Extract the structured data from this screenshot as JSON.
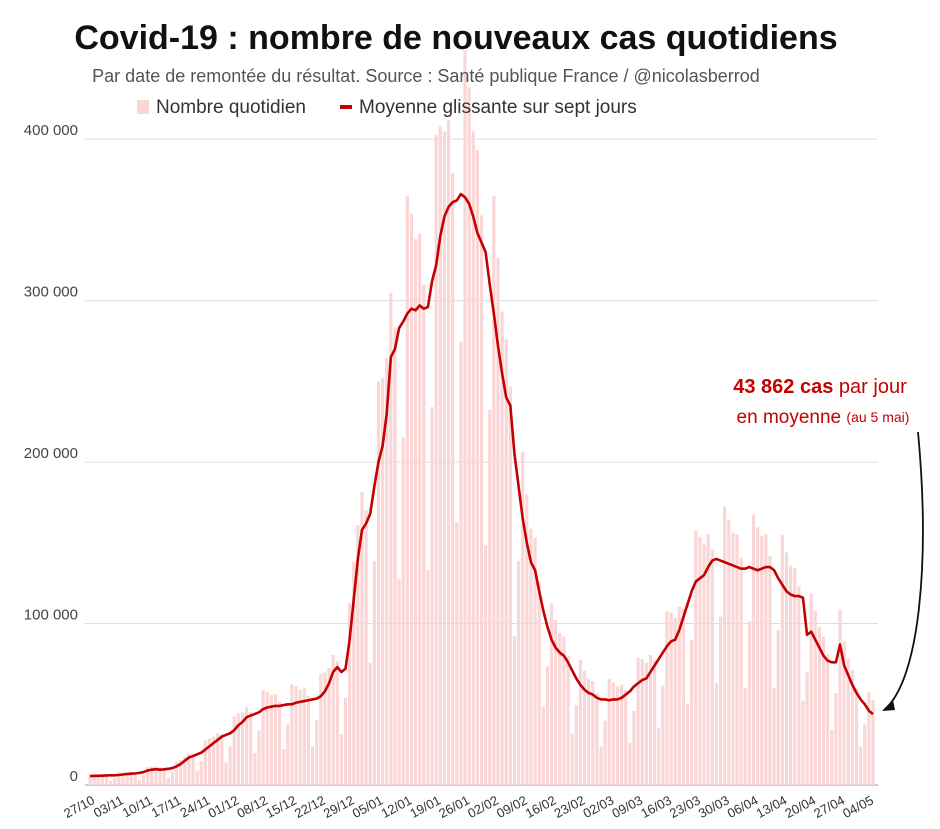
{
  "chart_data": {
    "type": "bar_line",
    "title": "Covid-19 : nombre de nouveaux cas quotidiens",
    "subtitle": "Par date de remontée du résultat. Source : Santé publique France / @nicolasberrod",
    "annotation": {
      "value": "43 862 cas",
      "text1": "par jour",
      "text2": "en moyenne",
      "note": "(au 5 mai)"
    },
    "categories": [
      "27/10",
      null,
      null,
      null,
      null,
      null,
      null,
      "03/11",
      null,
      null,
      null,
      null,
      null,
      null,
      "10/11",
      null,
      null,
      null,
      null,
      null,
      null,
      "17/11",
      null,
      null,
      null,
      null,
      null,
      null,
      "24/11",
      null,
      null,
      null,
      null,
      null,
      null,
      "01/12",
      null,
      null,
      null,
      null,
      null,
      null,
      "08/12",
      null,
      null,
      null,
      null,
      null,
      null,
      "15/12",
      null,
      null,
      null,
      null,
      null,
      null,
      "22/12",
      null,
      null,
      null,
      null,
      null,
      null,
      "29/12",
      null,
      null,
      null,
      null,
      null,
      null,
      "05/01",
      null,
      null,
      null,
      null,
      null,
      null,
      "12/01",
      null,
      null,
      null,
      null,
      null,
      null,
      "19/01",
      null,
      null,
      null,
      null,
      null,
      null,
      "26/01",
      null,
      null,
      null,
      null,
      null,
      null,
      "02/02",
      null,
      null,
      null,
      null,
      null,
      null,
      "09/02",
      null,
      null,
      null,
      null,
      null,
      null,
      "16/02",
      null,
      null,
      null,
      null,
      null,
      null,
      "23/02",
      null,
      null,
      null,
      null,
      null,
      null,
      "02/03",
      null,
      null,
      null,
      null,
      null,
      null,
      "09/03",
      null,
      null,
      null,
      null,
      null,
      null,
      "16/03",
      null,
      null,
      null,
      null,
      null,
      null,
      "23/03",
      null,
      null,
      null,
      null,
      null,
      null,
      "30/03",
      null,
      null,
      null,
      null,
      null,
      null,
      "06/04",
      null,
      null,
      null,
      null,
      null,
      null,
      "13/04",
      null,
      null,
      null,
      null,
      null,
      null,
      "20/04",
      null,
      null,
      null,
      null,
      null,
      null,
      "27/04",
      null,
      null,
      null,
      null,
      null,
      null,
      "04/05",
      null
    ],
    "series": [
      {
        "name": "Nombre quotidien",
        "type": "bar",
        "color": "#fbd6d6",
        "values": [
          6900,
          6700,
          6600,
          6700,
          6200,
          2700,
          4500,
          7800,
          7800,
          7800,
          8100,
          7600,
          3400,
          6000,
          11300,
          11400,
          11300,
          10900,
          10200,
          4500,
          7900,
          14400,
          15600,
          17300,
          19600,
          18900,
          8600,
          15000,
          27500,
          28800,
          29900,
          32200,
          31500,
          14000,
          24000,
          42500,
          44400,
          44900,
          48300,
          45200,
          19800,
          33800,
          58800,
          57600,
          55800,
          56400,
          51500,
          22300,
          37500,
          62500,
          61200,
          59200,
          59800,
          55100,
          23900,
          40100,
          68800,
          69600,
          72500,
          80500,
          76700,
          31500,
          54000,
          112500,
          138000,
          161000,
          181700,
          170100,
          75600,
          138800,
          250000,
          252000,
          264500,
          304800,
          283500,
          127400,
          215300,
          365000,
          354000,
          338100,
          341600,
          309800,
          133200,
          234000,
          402500,
          408000,
          404800,
          411700,
          379100,
          162900,
          274500,
          455000,
          432000,
          404800,
          393300,
          352800,
          148500,
          232500,
          365000,
          326400,
          293300,
          276000,
          246800,
          92300,
          138800,
          206300,
          180000,
          158700,
          153000,
          126000,
          48600,
          73500,
          112500,
          102000,
          94300,
          92000,
          79800,
          32000,
          49500,
          77500,
          70800,
          65600,
          64400,
          56700,
          23900,
          39800,
          65600,
          63600,
          61000,
          62100,
          58800,
          26100,
          45800,
          78800,
          78000,
          75900,
          80500,
          77700,
          35100,
          61500,
          107500,
          106800,
          103500,
          110400,
          109200,
          50400,
          90000,
          157500,
          153600,
          149500,
          155300,
          146000,
          63000,
          104300,
          172500,
          164400,
          156400,
          155300,
          140700,
          60300,
          101300,
          167500,
          159600,
          154100,
          155300,
          141800,
          59900,
          96000,
          155000,
          144000,
          135700,
          134600,
          122900,
          52200,
          69800,
          118800,
          108000,
          97800,
          92000,
          80900,
          34200,
          57000,
          108800,
          88800,
          78200,
          71300,
          59900,
          23900,
          37500,
          57500,
          52600
        ]
      },
      {
        "name": "Moyenne glissante sur sept jours",
        "type": "line",
        "color": "#c40000",
        "values": [
          5500,
          5600,
          5700,
          5800,
          5900,
          6000,
          6000,
          6200,
          6500,
          6800,
          7000,
          7200,
          7500,
          8000,
          9000,
          9500,
          9800,
          9500,
          9700,
          10000,
          10500,
          11500,
          13000,
          15000,
          17000,
          18000,
          19000,
          20000,
          22000,
          24000,
          26000,
          28000,
          30000,
          31000,
          32000,
          34000,
          37000,
          39000,
          42000,
          43000,
          44000,
          45000,
          47000,
          48000,
          48500,
          49000,
          49000,
          49500,
          50000,
          50000,
          51000,
          51500,
          52000,
          52500,
          53000,
          53500,
          55000,
          58000,
          63000,
          70000,
          73000,
          70000,
          72000,
          90000,
          115000,
          140000,
          158000,
          162000,
          168000,
          185000,
          200000,
          210000,
          230000,
          265000,
          270000,
          283000,
          287000,
          292000,
          295000,
          294000,
          297000,
          295000,
          296000,
          312000,
          322000,
          340000,
          352000,
          358000,
          361000,
          362000,
          366000,
          364000,
          360000,
          352000,
          342000,
          336000,
          330000,
          310000,
          292000,
          272000,
          255000,
          240000,
          235000,
          205000,
          185000,
          165000,
          150000,
          138000,
          133000,
          120000,
          108000,
          98000,
          90000,
          85000,
          82000,
          80000,
          76000,
          71000,
          66000,
          62000,
          59000,
          57000,
          56000,
          54000,
          53000,
          53000,
          52500,
          53000,
          53000,
          54000,
          56000,
          58000,
          61000,
          63000,
          65000,
          66000,
          70000,
          74000,
          78000,
          82000,
          86000,
          89000,
          90000,
          96000,
          104000,
          112000,
          120000,
          126000,
          128000,
          130000,
          135000,
          139000,
          140000,
          139000,
          138000,
          137000,
          136000,
          135000,
          134000,
          134000,
          135000,
          134000,
          133000,
          134000,
          135000,
          135000,
          133000,
          128000,
          124000,
          120000,
          118000,
          117000,
          117000,
          116000,
          93000,
          95000,
          90000,
          85000,
          80000,
          77000,
          76000,
          76000,
          87000,
          74000,
          68000,
          62000,
          57000,
          53000,
          50000,
          46000,
          43862
        ]
      }
    ],
    "ylim": [
      0,
      480000
    ],
    "yticks": [
      0,
      {
        "value": 100000,
        "label": "100 000"
      },
      {
        "value": 200000,
        "label": "200 000"
      },
      {
        "value": 300000,
        "label": "300 000"
      },
      {
        "value": 400000,
        "label": "400 000"
      }
    ],
    "grid": true
  }
}
